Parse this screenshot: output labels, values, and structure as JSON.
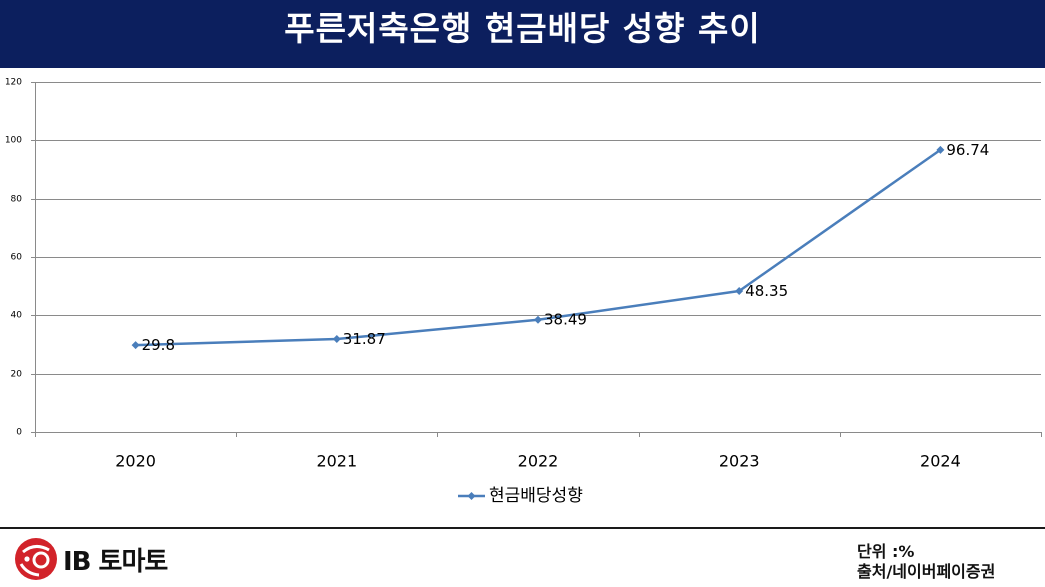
{
  "colors": {
    "header_bg": "#0c1f5e",
    "title_text": "#ffffff",
    "series": "#4a7ebb",
    "grid": "#8a8a8a",
    "axis": "#8a8a8a",
    "logo_red": "#d2232a"
  },
  "chart_data": {
    "type": "line",
    "title": "푸른저축은행 현금배당 성향 추이",
    "xlabel": "",
    "ylabel": "",
    "categories": [
      "2020",
      "2021",
      "2022",
      "2023",
      "2024"
    ],
    "series": [
      {
        "name": "현금배당성향",
        "values": [
          29.8,
          31.87,
          38.49,
          48.35,
          96.74
        ]
      }
    ],
    "ylim": [
      0,
      120
    ],
    "yticks": [
      0,
      20,
      40,
      60,
      80,
      100,
      120
    ],
    "data_labels": true,
    "grid": true,
    "legend": "bottom"
  },
  "footer": {
    "logo_text": "IB 토마토",
    "logo_icon": "tomato-logo-icon",
    "unit": "단위 :%",
    "source": "출처/네이버페이증권"
  }
}
